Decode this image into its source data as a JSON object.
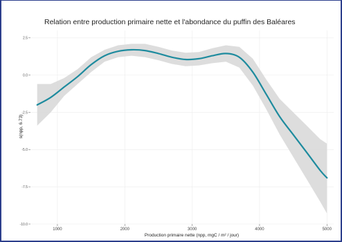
{
  "chart_data": {
    "type": "line",
    "title": "Relation entre production primaire nette et l'abondance du puffin des Baléares",
    "xlabel": "Production primaire nette (npp, mgC / m² / jour)",
    "ylabel": "s(npp, 6.73)",
    "xlim": [
      600,
      5100
    ],
    "ylim": [
      -10.0,
      3.0
    ],
    "x_ticks": [
      1000,
      2000,
      3000,
      4000,
      5000
    ],
    "x_tick_labels": [
      "1000",
      "2000",
      "3000",
      "4000",
      "5000"
    ],
    "y_ticks": [
      2.5,
      0.0,
      -2.5,
      -5.0,
      -7.5,
      -10.0
    ],
    "y_tick_labels": [
      "2.5",
      "0.0",
      "-2.5",
      "-5.0",
      "-7.5",
      "-10.0"
    ],
    "grid": true,
    "legend": "none",
    "series": [
      {
        "x": [
          700,
          900,
          1100,
          1300,
          1500,
          1700,
          1900,
          2100,
          2300,
          2500,
          2700,
          2900,
          3100,
          3300,
          3500,
          3700,
          3900,
          4100,
          4300,
          4500,
          4700,
          4900,
          5000
        ],
        "values": [
          -2.0,
          -1.5,
          -0.8,
          -0.1,
          0.7,
          1.3,
          1.6,
          1.7,
          1.65,
          1.45,
          1.2,
          1.05,
          1.1,
          1.3,
          1.45,
          1.2,
          0.2,
          -1.3,
          -2.8,
          -4.0,
          -5.2,
          -6.4,
          -6.9
        ],
        "lower": [
          -3.4,
          -2.5,
          -1.4,
          -0.6,
          0.2,
          0.9,
          1.2,
          1.3,
          1.2,
          1.0,
          0.75,
          0.6,
          0.65,
          0.8,
          0.9,
          0.5,
          -0.7,
          -2.3,
          -4.0,
          -5.5,
          -7.0,
          -8.5,
          -9.3
        ],
        "upper": [
          -0.6,
          -0.6,
          -0.2,
          0.4,
          1.2,
          1.7,
          2.0,
          2.1,
          2.1,
          1.9,
          1.65,
          1.5,
          1.55,
          1.8,
          2.0,
          1.9,
          1.1,
          -0.3,
          -1.6,
          -2.5,
          -3.4,
          -4.3,
          -4.6
        ]
      }
    ],
    "colors": {
      "line": "#1e8b9e",
      "band": "#d9d9d9",
      "grid": "#ececec",
      "frame": "#2c3e8c"
    }
  }
}
